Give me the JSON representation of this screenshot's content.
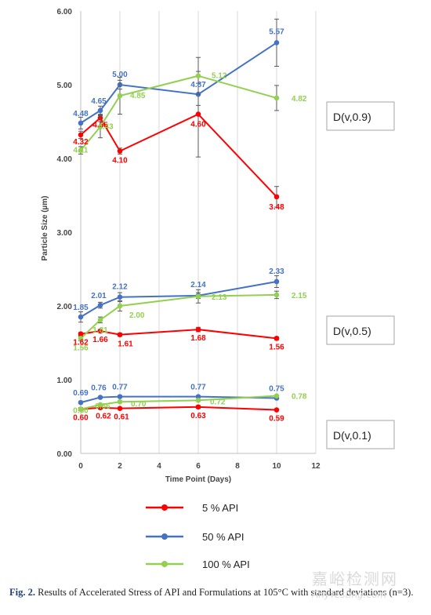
{
  "chart_data": {
    "type": "line",
    "xlabel": "Time Point (Days)",
    "ylabel": "Particle Size (µm)",
    "xlim": [
      0,
      12
    ],
    "ylim": [
      0,
      6
    ],
    "xticks": [
      "0",
      "2",
      "4",
      "6",
      "8",
      "10",
      "12"
    ],
    "yticks": [
      "0.00",
      "1.00",
      "2.00",
      "3.00",
      "4.00",
      "5.00",
      "6.00"
    ],
    "grid": "vertical",
    "legend_position": "bottom",
    "series": [
      {
        "name": "5 % API",
        "color": "#ff0000",
        "groups": [
          {
            "x": [
              0,
              1,
              2,
              6,
              10
            ],
            "y": [
              4.32,
              4.55,
              4.1,
              4.6,
              3.48
            ],
            "err": [
              0.05,
              0.05,
              0.04,
              0.58,
              0.14
            ],
            "labels": [
              "4.32",
              "4.55",
              "4.10",
              "4.60",
              "3.48"
            ]
          },
          {
            "x": [
              0,
              1,
              2,
              6,
              10
            ],
            "y": [
              1.62,
              1.66,
              1.61,
              1.68,
              1.56
            ],
            "err": [
              0.02,
              0.02,
              0.02,
              0.03,
              0.02
            ],
            "labels": [
              "1.62",
              "1.66",
              "1.61",
              "1.68",
              "1.56"
            ]
          },
          {
            "x": [
              0,
              1,
              2,
              6,
              10
            ],
            "y": [
              0.6,
              0.62,
              0.61,
              0.63,
              0.59
            ],
            "err": [
              0.02,
              0.02,
              0.01,
              0.02,
              0.01
            ],
            "labels": [
              "0.60",
              "0.62",
              "0.61",
              "0.63",
              "0.59"
            ]
          }
        ]
      },
      {
        "name": "50 % API",
        "color": "#4472c4",
        "groups": [
          {
            "x": [
              0,
              1,
              2,
              6,
              10
            ],
            "y": [
              4.48,
              4.65,
              5.0,
              4.87,
              5.57
            ],
            "err": [
              0.08,
              0.06,
              0.06,
              0.15,
              0.32
            ],
            "labels": [
              "4.48",
              "4.65",
              "5.00",
              "4.87",
              "5.57"
            ]
          },
          {
            "x": [
              0,
              1,
              2,
              6,
              10
            ],
            "y": [
              1.85,
              2.01,
              2.12,
              2.14,
              2.33
            ],
            "err": [
              0.07,
              0.04,
              0.06,
              0.04,
              0.08
            ],
            "labels": [
              "1.85",
              "2.01",
              "2.12",
              "2.14",
              "2.33"
            ]
          },
          {
            "x": [
              0,
              1,
              2,
              6,
              10
            ],
            "y": [
              0.69,
              0.76,
              0.77,
              0.77,
              0.75
            ],
            "err": [
              0.01,
              0.01,
              0.01,
              0.01,
              0.01
            ],
            "labels": [
              "0.69",
              "0.76",
              "0.77",
              "0.77",
              "0.75"
            ]
          }
        ]
      },
      {
        "name": "100 % API",
        "color": "#92d050",
        "groups": [
          {
            "x": [
              0,
              1,
              2,
              6,
              10
            ],
            "y": [
              4.11,
              4.43,
              4.85,
              5.12,
              4.82
            ],
            "err": [
              0.05,
              0.15,
              0.25,
              0.25,
              0.17
            ],
            "labels": [
              "4.11",
              "4.43",
              "4.85",
              "5.12",
              "4.82"
            ]
          },
          {
            "x": [
              0,
              1,
              2,
              6,
              10
            ],
            "y": [
              1.56,
              1.81,
              2.0,
              2.13,
              2.15
            ],
            "err": [
              0.03,
              0.04,
              0.07,
              0.09,
              0.05
            ],
            "labels": [
              "1.56",
              "1.81",
              "2.00",
              "2.13",
              "2.15"
            ]
          },
          {
            "x": [
              0,
              1,
              2,
              6,
              10
            ],
            "y": [
              0.6,
              0.66,
              0.7,
              0.72,
              0.78
            ],
            "err": [
              0.01,
              0.01,
              0.01,
              0.01,
              0.01
            ],
            "labels": [
              "0.60",
              "0.66",
              "0.70",
              "0.72",
              "0.78"
            ]
          }
        ]
      }
    ],
    "annotations": [
      "D(v,0.9)",
      "D(v,0.5)",
      "D(v,0.1)"
    ]
  },
  "caption": {
    "figure": "Fig. 2.",
    "text": "Results of Accelerated Stress of API and Formulations at 105°C with standard deviations (n=3)."
  },
  "watermark": {
    "line1": "嘉峪检测网",
    "line2": "AnyTesting.com"
  }
}
